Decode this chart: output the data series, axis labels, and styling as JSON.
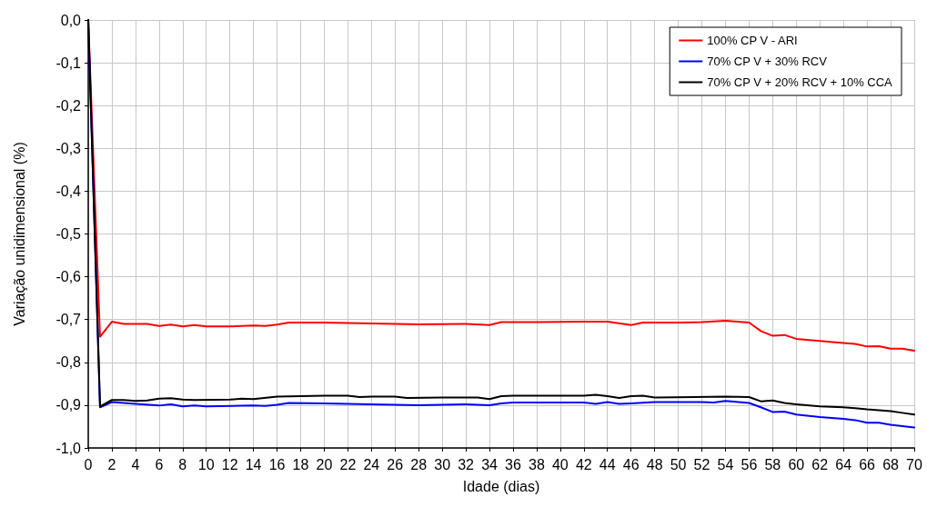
{
  "chart_data": {
    "type": "line",
    "xlabel": "Idade (dias)",
    "ylabel": "Variação unidimensional (%)",
    "xlim": [
      0,
      70
    ],
    "xticks": [
      0,
      2,
      4,
      6,
      8,
      10,
      12,
      14,
      16,
      18,
      20,
      22,
      24,
      26,
      28,
      30,
      32,
      34,
      36,
      38,
      40,
      42,
      44,
      46,
      48,
      50,
      52,
      54,
      56,
      58,
      60,
      62,
      64,
      66,
      68,
      70
    ],
    "ylim": [
      -1.0,
      0.0
    ],
    "yticks": [
      {
        "value": 0,
        "label": "0,0"
      },
      {
        "value": -0.1,
        "label": "-0,1"
      },
      {
        "value": -0.2,
        "label": "-0,2"
      },
      {
        "value": -0.3,
        "label": "-0,3"
      },
      {
        "value": -0.4,
        "label": "-0,4"
      },
      {
        "value": -0.5,
        "label": "-0,5"
      },
      {
        "value": -0.6,
        "label": "-0,6"
      },
      {
        "value": -0.7,
        "label": "-0,7"
      },
      {
        "value": -0.8,
        "label": "-0,8"
      },
      {
        "value": -0.9,
        "label": "-0,9"
      },
      {
        "value": -1.0,
        "label": "-1,0"
      }
    ],
    "grid": true,
    "legend": "top right",
    "marker": "none",
    "line_style": "solid",
    "series": [
      {
        "name": "100% CP V - ARI",
        "color": "#ff0000",
        "x": [
          0,
          1,
          2,
          3,
          4,
          5,
          6,
          7,
          8,
          9,
          10,
          12,
          14,
          15,
          16,
          17,
          20,
          24,
          28,
          32,
          34,
          35,
          38,
          42,
          44,
          46,
          47,
          50,
          52,
          54,
          56,
          57,
          58,
          59,
          60,
          62,
          64,
          65,
          66,
          67,
          68,
          69,
          70
        ],
        "values": [
          0,
          -0.74,
          -0.705,
          -0.71,
          -0.71,
          -0.71,
          -0.715,
          -0.712,
          -0.716,
          -0.713,
          -0.716,
          -0.716,
          -0.714,
          -0.715,
          -0.712,
          -0.707,
          -0.707,
          -0.709,
          -0.711,
          -0.71,
          -0.713,
          -0.706,
          -0.706,
          -0.705,
          -0.705,
          -0.713,
          -0.707,
          -0.707,
          -0.706,
          -0.703,
          -0.707,
          -0.727,
          -0.738,
          -0.736,
          -0.745,
          -0.75,
          -0.755,
          -0.757,
          -0.763,
          -0.762,
          -0.768,
          -0.768,
          -0.773
        ]
      },
      {
        "name": "70% CP V + 30% RCV",
        "color": "#0000ff",
        "x": [
          0,
          1,
          2,
          4,
          6,
          7,
          8,
          9,
          10,
          14,
          15,
          16,
          17,
          20,
          24,
          28,
          32,
          34,
          35,
          36,
          42,
          43,
          44,
          45,
          46,
          48,
          52,
          53,
          54,
          56,
          57,
          58,
          59,
          60,
          62,
          64,
          65,
          66,
          67,
          68,
          70
        ],
        "values": [
          0,
          -0.905,
          -0.893,
          -0.897,
          -0.901,
          -0.898,
          -0.903,
          -0.901,
          -0.903,
          -0.901,
          -0.902,
          -0.899,
          -0.895,
          -0.896,
          -0.898,
          -0.9,
          -0.898,
          -0.9,
          -0.896,
          -0.894,
          -0.894,
          -0.897,
          -0.893,
          -0.897,
          -0.896,
          -0.893,
          -0.893,
          -0.894,
          -0.89,
          -0.895,
          -0.905,
          -0.916,
          -0.915,
          -0.922,
          -0.928,
          -0.932,
          -0.935,
          -0.941,
          -0.941,
          -0.946,
          -0.952
        ]
      },
      {
        "name": "70% CP V + 20% RCV + 10% CCA",
        "color": "#000000",
        "x": [
          0,
          1,
          2,
          3,
          4,
          5,
          6,
          7,
          8,
          9,
          12,
          13,
          14,
          16,
          18,
          20,
          22,
          23,
          24,
          26,
          27,
          30,
          33,
          34,
          35,
          36,
          42,
          43,
          44,
          45,
          46,
          47,
          48,
          54,
          56,
          57,
          58,
          59,
          60,
          62,
          64,
          65,
          66,
          68,
          69,
          70
        ],
        "values": [
          0,
          -0.903,
          -0.888,
          -0.888,
          -0.89,
          -0.889,
          -0.885,
          -0.884,
          -0.887,
          -0.888,
          -0.887,
          -0.885,
          -0.886,
          -0.88,
          -0.879,
          -0.878,
          -0.878,
          -0.881,
          -0.88,
          -0.88,
          -0.883,
          -0.882,
          -0.882,
          -0.886,
          -0.879,
          -0.878,
          -0.878,
          -0.876,
          -0.879,
          -0.883,
          -0.879,
          -0.878,
          -0.882,
          -0.88,
          -0.881,
          -0.891,
          -0.889,
          -0.895,
          -0.898,
          -0.903,
          -0.905,
          -0.907,
          -0.91,
          -0.914,
          -0.918,
          -0.922
        ]
      }
    ]
  }
}
